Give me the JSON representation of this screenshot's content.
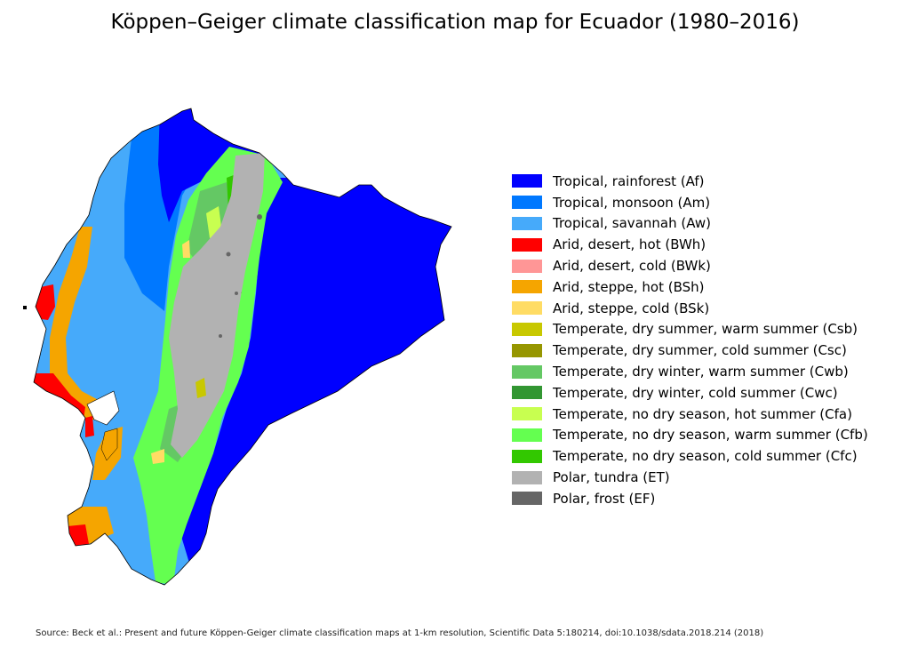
{
  "title": "Köppen–Geiger climate classification map for Ecuador (1980–2016)",
  "legend": [
    {
      "label": "Tropical, rainforest (Af)",
      "color": "#0000ff"
    },
    {
      "label": "Tropical, monsoon (Am)",
      "color": "#0078ff"
    },
    {
      "label": "Tropical, savannah (Aw)",
      "color": "#46aafa"
    },
    {
      "label": "Arid, desert, hot (BWh)",
      "color": "#ff0000"
    },
    {
      "label": "Arid, desert, cold (BWk)",
      "color": "#ff9696"
    },
    {
      "label": "Arid, steppe, hot (BSh)",
      "color": "#f5a500"
    },
    {
      "label": "Arid, steppe, cold (BSk)",
      "color": "#ffdc64"
    },
    {
      "label": "Temperate, dry summer, warm summer (Csb)",
      "color": "#c8c800"
    },
    {
      "label": "Temperate, dry summer, cold summer (Csc)",
      "color": "#969600"
    },
    {
      "label": "Temperate, dry winter, warm summer (Cwb)",
      "color": "#64c864"
    },
    {
      "label": "Temperate, dry winter, cold summer (Cwc)",
      "color": "#329632"
    },
    {
      "label": "Temperate, no dry season, hot summer (Cfa)",
      "color": "#c8ff50"
    },
    {
      "label": "Temperate, no dry season, warm summer (Cfb)",
      "color": "#64ff50"
    },
    {
      "label": "Temperate, no dry season, cold summer (Cfc)",
      "color": "#32c800"
    },
    {
      "label": "Polar, tundra (ET)",
      "color": "#b2b2b2"
    },
    {
      "label": "Polar, frost (EF)",
      "color": "#666666"
    }
  ],
  "source": "Source: Beck et al.: Present and future Köppen-Geiger climate classification maps at 1-km resolution, Scientific Data 5:180214, doi:10.1038/sdata.2018.214 (2018)"
}
